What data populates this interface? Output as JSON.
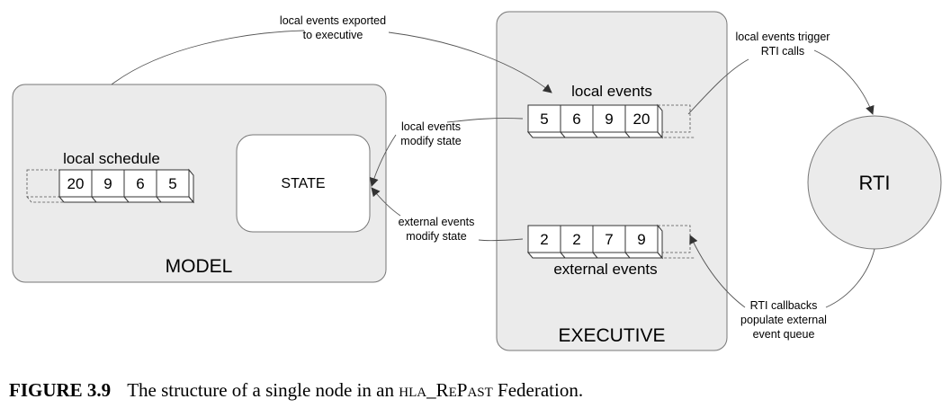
{
  "diagram": {
    "model": {
      "label": "MODEL",
      "schedule_label": "local schedule",
      "schedule": [
        "20",
        "9",
        "6",
        "5"
      ],
      "state_label": "STATE"
    },
    "executive": {
      "label": "EXECUTIVE",
      "local_queue_label": "local events",
      "local_queue": [
        "5",
        "6",
        "9",
        "20"
      ],
      "external_queue_label": "external events",
      "external_queue": [
        "2",
        "2",
        "7",
        "9"
      ]
    },
    "rti": {
      "label": "RTI"
    },
    "annotations": {
      "exported": [
        "local events exported",
        "to executive"
      ],
      "local_modify": [
        "local events",
        "modify state"
      ],
      "external_modify": [
        "external events",
        "modify state"
      ],
      "trigger": [
        "local events trigger",
        "RTI calls"
      ],
      "callbacks": [
        "RTI callbacks",
        "populate external",
        "event queue"
      ]
    },
    "colors": {
      "panel_fill": "#ebebeb",
      "stroke": "#666666",
      "arrow": "#444444"
    }
  },
  "caption": {
    "figure_label": "FIGURE 3.9",
    "text_before": "The structure of a single node in an ",
    "federation_name": "hla_RePast",
    "text_after": " Federation."
  }
}
